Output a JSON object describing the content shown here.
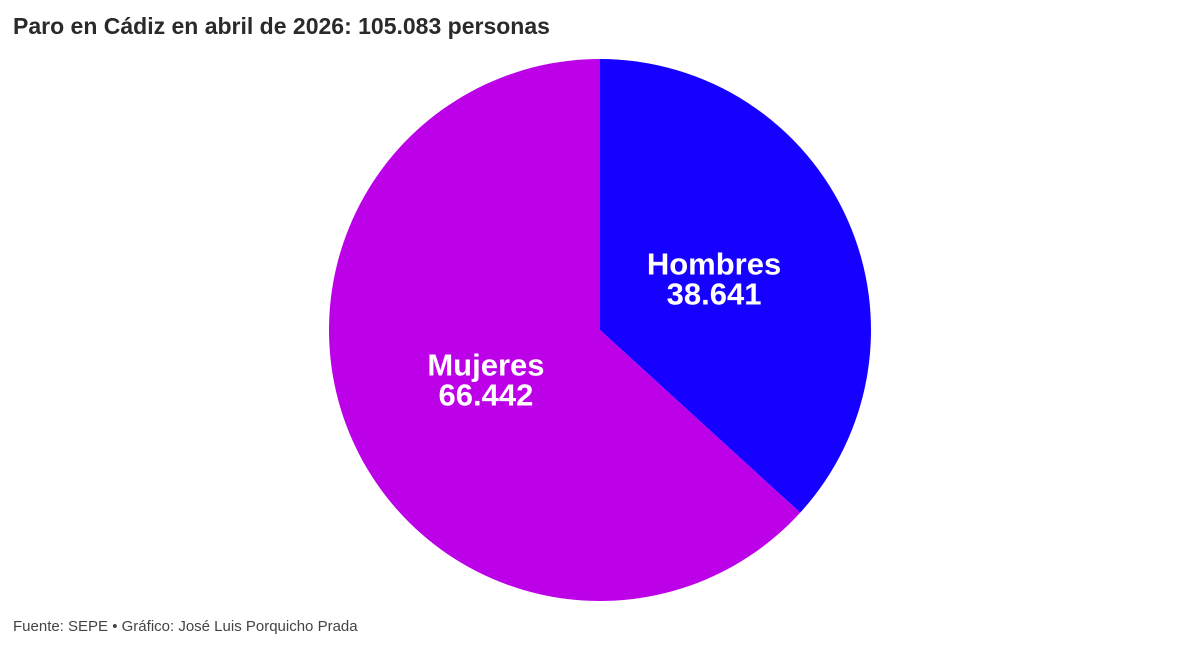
{
  "header": {
    "title": "Paro en Cádiz en abril de 2026: 105.083 personas"
  },
  "footer": {
    "source": "Fuente: SEPE • Gráfico: José Luis Porquicho Prada"
  },
  "chart_data": {
    "type": "pie",
    "title": "Paro en Cádiz en abril de 2026: 105.083 personas",
    "total": 105083,
    "start_angle_deg": 0,
    "direction": "clockwise",
    "slices": [
      {
        "label": "Hombres",
        "value": 38641,
        "value_label": "38.641",
        "color": "#1600ff"
      },
      {
        "label": "Mujeres",
        "value": 66442,
        "value_label": "66.442",
        "color": "#bc00e8"
      }
    ],
    "legend": "none"
  }
}
